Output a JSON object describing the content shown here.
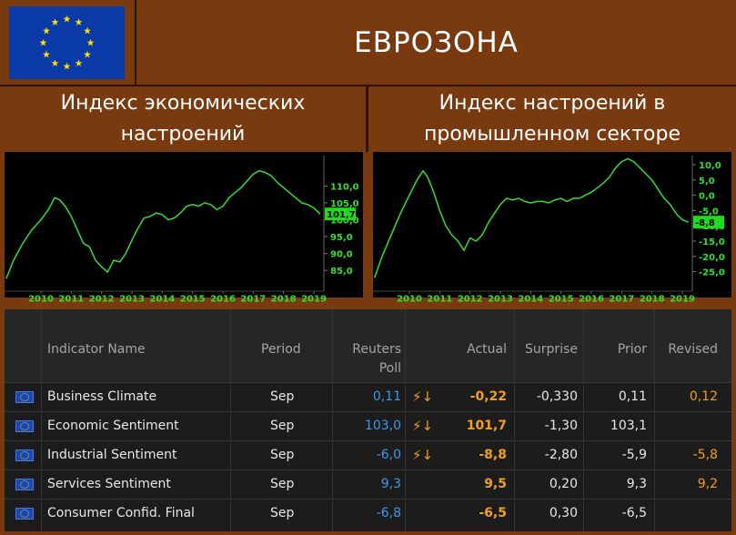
{
  "header": {
    "title": "ЕВРОЗОНА",
    "flag_icon": "eu-flag-icon"
  },
  "subtitles": {
    "left": "Индекс экономических настроений",
    "right": "Индекс настроений в промышленном секторе"
  },
  "chart_data": [
    {
      "type": "line",
      "title": "Индекс экономических настроений",
      "x_ticks": [
        "2010",
        "2011",
        "2012",
        "2013",
        "2014",
        "2015",
        "2016",
        "2017",
        "2018",
        "2019"
      ],
      "y_ticks": [
        "85,0",
        "90,0",
        "95,0",
        "100,0",
        "105,0",
        "110,0"
      ],
      "ylim": [
        81,
        119
      ],
      "xlim": [
        2009.3,
        2019.8
      ],
      "current_value_label": "101,7",
      "line_color": "#33dd33",
      "x": [
        2009.35,
        2009.6,
        2009.9,
        2010.2,
        2010.5,
        2010.75,
        2010.95,
        2011.1,
        2011.3,
        2011.5,
        2011.7,
        2011.9,
        2012.1,
        2012.3,
        2012.5,
        2012.7,
        2012.9,
        2013.1,
        2013.3,
        2013.5,
        2013.7,
        2013.9,
        2014.1,
        2014.3,
        2014.5,
        2014.7,
        2014.9,
        2015.1,
        2015.3,
        2015.5,
        2015.7,
        2015.9,
        2016.1,
        2016.3,
        2016.5,
        2016.7,
        2016.9,
        2017.1,
        2017.3,
        2017.5,
        2017.7,
        2017.9,
        2018.1,
        2018.3,
        2018.5,
        2018.7,
        2018.9,
        2019.1,
        2019.3,
        2019.5,
        2019.7
      ],
      "y": [
        82.5,
        88,
        93,
        97,
        100,
        103,
        106.5,
        106,
        104,
        101,
        97,
        93,
        92,
        88,
        86,
        84.5,
        88,
        87.5,
        90,
        94,
        97.5,
        100.5,
        101,
        102,
        101.5,
        100,
        100.5,
        102,
        104,
        104.5,
        104,
        105,
        104.5,
        103,
        104,
        106.5,
        108,
        109.5,
        111.5,
        113.5,
        114.5,
        114,
        113,
        111,
        109.5,
        108,
        106.5,
        105,
        104.5,
        103.5,
        101.7
      ]
    },
    {
      "type": "line",
      "title": "Индекс настроений в промышленном секторе",
      "x_ticks": [
        "2010",
        "2011",
        "2012",
        "2013",
        "2014",
        "2015",
        "2016",
        "2017",
        "2018",
        "2019"
      ],
      "y_ticks": [
        "10,0",
        "5,0",
        "0,0",
        "-5,0",
        "-10,0",
        "-15,0",
        "-20,0",
        "-25,0"
      ],
      "ylim": [
        -29,
        13
      ],
      "xlim": [
        2009.3,
        2019.8
      ],
      "current_value_label": "-8,8",
      "line_color": "#33dd33",
      "x": [
        2009.35,
        2009.6,
        2009.9,
        2010.2,
        2010.5,
        2010.75,
        2010.95,
        2011.1,
        2011.3,
        2011.5,
        2011.7,
        2011.9,
        2012.1,
        2012.3,
        2012.5,
        2012.7,
        2012.9,
        2013.1,
        2013.3,
        2013.5,
        2013.7,
        2013.9,
        2014.1,
        2014.3,
        2014.5,
        2014.7,
        2014.9,
        2015.1,
        2015.3,
        2015.5,
        2015.7,
        2015.9,
        2016.1,
        2016.3,
        2016.5,
        2016.7,
        2016.9,
        2017.1,
        2017.3,
        2017.5,
        2017.7,
        2017.9,
        2018.1,
        2018.3,
        2018.5,
        2018.7,
        2018.9,
        2019.1,
        2019.3,
        2019.5,
        2019.7
      ],
      "y": [
        -27,
        -20,
        -13,
        -6,
        0,
        5,
        8,
        6,
        1,
        -5,
        -10,
        -13,
        -15,
        -18,
        -14,
        -15,
        -13,
        -9,
        -6,
        -3,
        -1,
        -1.5,
        -1,
        -2,
        -2.5,
        -2,
        -2,
        -2.5,
        -1.5,
        -1,
        -2,
        -1,
        -1,
        0,
        1,
        2.5,
        4,
        6,
        9,
        11,
        12,
        11,
        9,
        7,
        5,
        2,
        -1,
        -3,
        -6,
        -8,
        -8.8
      ]
    }
  ],
  "table": {
    "headers": {
      "indicator": "Indicator Name",
      "period": "Period",
      "poll_1": "Reuters",
      "poll_2": "Poll",
      "actual": "Actual",
      "surprise": "Surprise",
      "prior": "Prior",
      "revised": "Revised"
    },
    "rows": [
      {
        "name": "Business Climate",
        "period": "Sep",
        "poll": "0,11",
        "bolt": "⚡↓",
        "actual": "-0,22",
        "surprise": "-0,330",
        "prior": "0,11",
        "revised": "0,12"
      },
      {
        "name": "Economic Sentiment",
        "period": "Sep",
        "poll": "103,0",
        "bolt": "⚡↓",
        "actual": "101,7",
        "surprise": "-1,30",
        "prior": "103,1",
        "revised": ""
      },
      {
        "name": "Industrial Sentiment",
        "period": "Sep",
        "poll": "-6,0",
        "bolt": "⚡↓",
        "actual": "-8,8",
        "surprise": "-2,80",
        "prior": "-5,9",
        "revised": "-5,8"
      },
      {
        "name": "Services Sentiment",
        "period": "Sep",
        "poll": "9,3",
        "bolt": "",
        "actual": "9,5",
        "surprise": "0,20",
        "prior": "9,3",
        "revised": "9,2"
      },
      {
        "name": "Consumer Confid. Final",
        "period": "Sep",
        "poll": "-6,8",
        "bolt": "",
        "actual": "-6,5",
        "surprise": "0,30",
        "prior": "-6,5",
        "revised": ""
      }
    ]
  }
}
